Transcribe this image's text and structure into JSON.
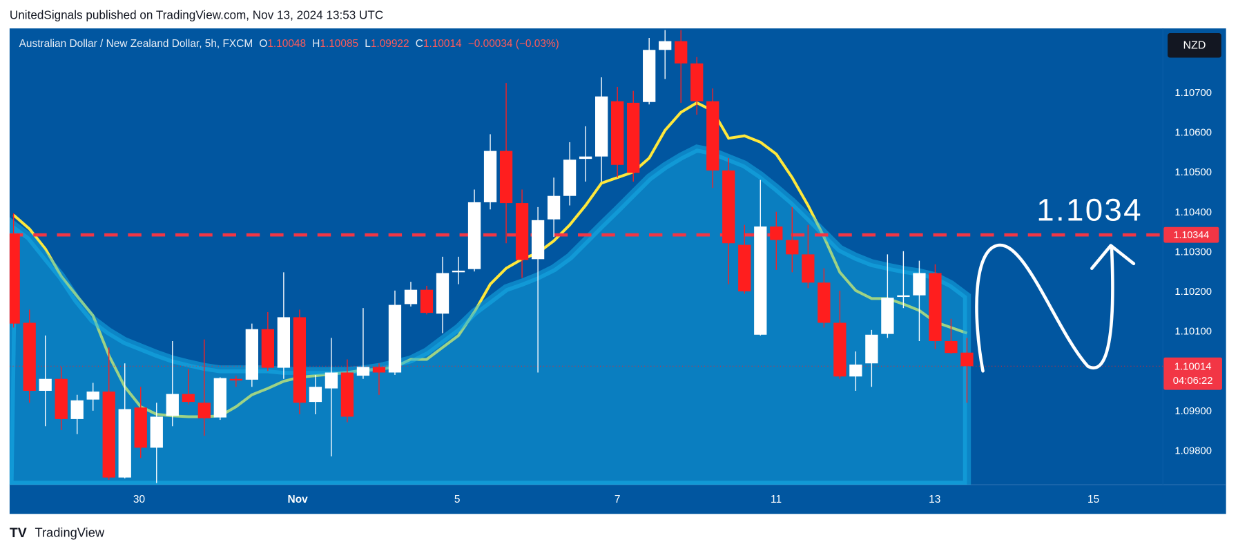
{
  "header": {
    "text": "UnitedSignals published on TradingView.com, Nov 13, 2024 13:53 UTC"
  },
  "footer": {
    "brand": "TradingView"
  },
  "chart_data": {
    "type": "candlestick",
    "symbol": "Australian Dollar / New Zealand Dollar, 5h, FXCM",
    "ohlc_labels": [
      "O",
      "H",
      "L",
      "C"
    ],
    "change": "−0.00034 (−0.03%)",
    "currency": "NZD",
    "annotation": "1.1034",
    "countdown": "04:06:22",
    "up_color": "#ffffff",
    "down_color": "#ff1e1e",
    "open": [
      1.10347,
      1.10123,
      1.09952,
      1.09982,
      1.09881,
      1.0993,
      1.0995,
      1.09734,
      1.0991,
      1.09809,
      1.09889,
      1.09944,
      1.09922,
      1.09885,
      1.09982,
      1.0998,
      1.10107,
      1.1001,
      1.10137,
      1.09924,
      1.09958,
      1.09998,
      1.0999,
      1.10012,
      1.09998,
      1.1017,
      1.10206,
      1.10146,
      1.1025,
      1.10258,
      1.10426,
      1.10555,
      1.10424,
      1.10283,
      1.10383,
      1.10442,
      1.10535,
      1.10541,
      1.1068,
      1.10676,
      1.10678,
      1.10809,
      1.10831,
      1.10775,
      1.1068,
      1.10506,
      1.10319,
      1.10093,
      1.10365,
      1.10331,
      1.10295,
      1.10224,
      1.10123,
      1.09988,
      1.10021,
      1.10095,
      1.10188,
      1.10192,
      1.10248,
      1.10077,
      1.10048
    ],
    "high": [
      1.10398,
      1.10156,
      1.10091,
      1.10012,
      1.09942,
      1.09972,
      1.10061,
      1.10021,
      1.09962,
      1.09922,
      1.10077,
      1.10006,
      1.10081,
      1.09986,
      1.0999,
      1.10121,
      1.1015,
      1.1025,
      1.10156,
      1.09992,
      1.10085,
      1.10031,
      1.1016,
      1.10021,
      1.10204,
      1.10226,
      1.10216,
      1.10289,
      1.10289,
      1.10458,
      1.10597,
      1.10726,
      1.10458,
      1.10414,
      1.10488,
      1.10577,
      1.10617,
      1.1074,
      1.10716,
      1.10706,
      1.10839,
      1.10859,
      1.10859,
      1.10791,
      1.10712,
      1.10537,
      1.10369,
      1.10482,
      1.10402,
      1.10414,
      1.10369,
      1.1026,
      1.10204,
      1.10051,
      1.10105,
      1.10295,
      1.10303,
      1.10279,
      1.1027,
      1.10133,
      1.10085
    ],
    "low": [
      1.10111,
      1.09922,
      1.09863,
      1.09853,
      1.09843,
      1.09902,
      1.09728,
      1.09732,
      1.09783,
      1.0972,
      1.09863,
      1.09918,
      1.09839,
      1.09879,
      1.09962,
      1.09962,
      1.10002,
      1.09982,
      1.09893,
      1.09893,
      1.09787,
      1.09873,
      1.09982,
      1.09942,
      1.09992,
      1.10164,
      1.10144,
      1.10097,
      1.1022,
      1.10252,
      1.10408,
      1.10323,
      1.10236,
      1.09998,
      1.10339,
      1.10418,
      1.10478,
      1.10478,
      1.10488,
      1.10478,
      1.10672,
      1.10736,
      1.10676,
      1.10646,
      1.10462,
      1.1022,
      1.10196,
      1.10091,
      1.10256,
      1.1025,
      1.1021,
      1.10111,
      1.09982,
      1.09952,
      1.09962,
      1.10085,
      1.1016,
      1.10077,
      1.10057,
      1.10045,
      1.09922
    ],
    "close": [
      1.10121,
      1.09952,
      1.09982,
      1.09881,
      1.09928,
      1.0995,
      1.09734,
      1.09906,
      1.09809,
      1.09887,
      1.09944,
      1.09924,
      1.09883,
      1.09984,
      1.09978,
      1.10107,
      1.1001,
      1.10137,
      1.09922,
      1.09962,
      1.09998,
      1.09887,
      1.10012,
      1.09998,
      1.10168,
      1.10206,
      1.10148,
      1.10248,
      1.10254,
      1.10426,
      1.10555,
      1.10424,
      1.10281,
      1.10381,
      1.10442,
      1.10533,
      1.10541,
      1.10692,
      1.1052,
      1.105,
      1.10809,
      1.10831,
      1.10775,
      1.1068,
      1.10506,
      1.10323,
      1.10202,
      1.10365,
      1.10331,
      1.10295,
      1.10224,
      1.10123,
      1.09988,
      1.10018,
      1.10093,
      1.10186,
      1.10192,
      1.10248,
      1.10077,
      1.10047,
      1.10014
    ],
    "line": {
      "color": "#ffe83b",
      "values": [
        1.10394,
        1.10359,
        1.10309,
        1.1024,
        1.1019,
        1.10141,
        1.10041,
        1.09962,
        1.09912,
        1.09893,
        1.09889,
        1.09887,
        1.09887,
        1.09889,
        1.09912,
        1.09942,
        1.09958,
        1.09976,
        1.09986,
        1.0999,
        1.09994,
        1.09998,
        1.10004,
        1.10006,
        1.10012,
        1.10031,
        1.10031,
        1.10061,
        1.10091,
        1.1015,
        1.1022,
        1.1026,
        1.10283,
        1.10299,
        1.10329,
        1.10369,
        1.10418,
        1.10474,
        1.10488,
        1.10502,
        1.10537,
        1.10607,
        1.10652,
        1.10676,
        1.10656,
        1.10587,
        1.10593,
        1.10577,
        1.10547,
        1.10488,
        1.10418,
        1.10339,
        1.1025,
        1.10204,
        1.10184,
        1.10184,
        1.1017,
        1.10154,
        1.10125,
        1.10111,
        1.10097
      ]
    },
    "area": {
      "color": "#18b4ec",
      "values": [
        1.10369,
        1.10339,
        1.10289,
        1.1024,
        1.1018,
        1.10131,
        1.10101,
        1.10077,
        1.10061,
        1.10045,
        1.10031,
        1.10021,
        1.10012,
        1.10006,
        1.10006,
        1.10006,
        1.10006,
        1.10002,
        1.10002,
        1.10002,
        1.10002,
        1.10002,
        1.10006,
        1.10012,
        1.10021,
        1.10031,
        1.10051,
        1.10081,
        1.10111,
        1.1015,
        1.1018,
        1.1021,
        1.10224,
        1.1024,
        1.1026,
        1.10289,
        1.10329,
        1.10369,
        1.10408,
        1.10448,
        1.10488,
        1.10517,
        1.10541,
        1.10561,
        1.10553,
        1.10537,
        1.10521,
        1.10494,
        1.10462,
        1.10428,
        1.10389,
        1.10349,
        1.10309,
        1.10289,
        1.10273,
        1.10264,
        1.10256,
        1.1025,
        1.1024,
        1.1022,
        1.1019
      ]
    },
    "hline": {
      "value": 1.10344,
      "color": "#f23645"
    },
    "ylim": [
      1.09716,
      1.10863
    ],
    "yticks": [
      {
        "value": 1.107,
        "label": "1.10700"
      },
      {
        "value": 1.106,
        "label": "1.10600"
      },
      {
        "value": 1.105,
        "label": "1.10500"
      },
      {
        "value": 1.104,
        "label": "1.10400"
      },
      {
        "value": 1.103,
        "label": "1.10300"
      },
      {
        "value": 1.102,
        "label": "1.10200"
      },
      {
        "value": 1.101,
        "label": "1.10100"
      },
      {
        "value": 1.099,
        "label": "1.09900"
      },
      {
        "value": 1.098,
        "label": "1.09800"
      }
    ],
    "xlim": [
      -0.25,
      72.33
    ],
    "xticks": [
      {
        "value": 7.9,
        "label": "30"
      },
      {
        "value": 17.88,
        "label": "Nov"
      },
      {
        "value": 27.92,
        "label": "5"
      },
      {
        "value": 38.0,
        "label": "7"
      },
      {
        "value": 47.99,
        "label": "11"
      },
      {
        "value": 57.97,
        "label": "13"
      },
      {
        "value": 67.96,
        "label": "15"
      }
    ]
  }
}
